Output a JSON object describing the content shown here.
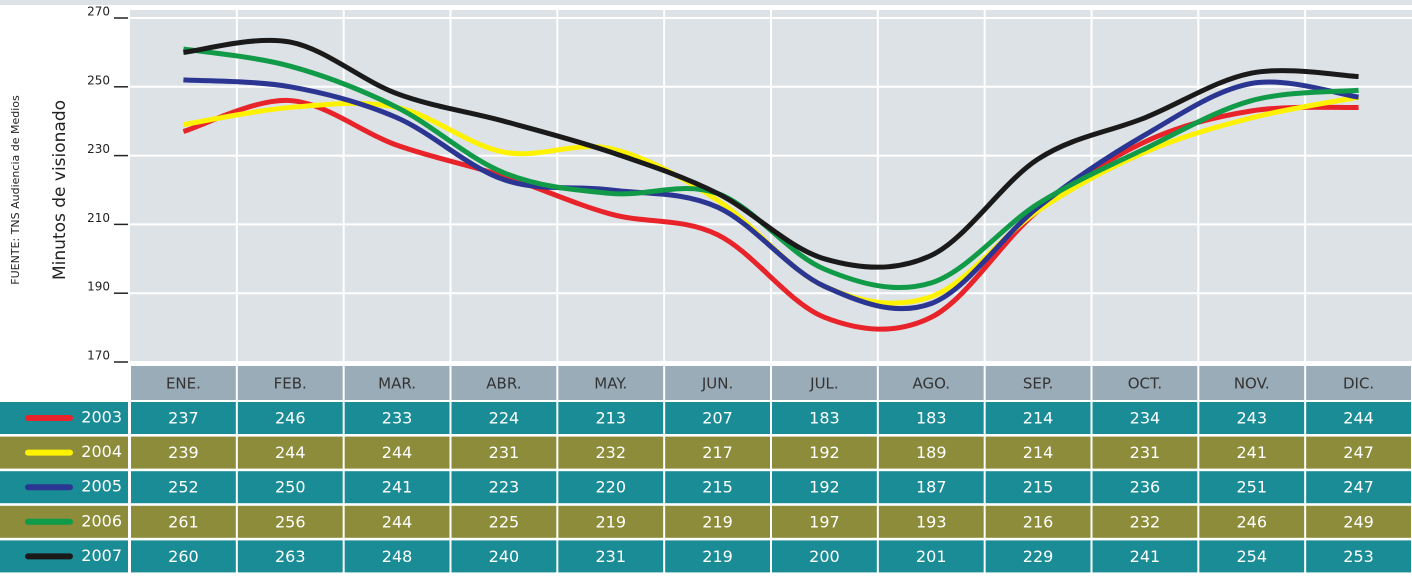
{
  "chart_data": {
    "type": "line",
    "source": "FUENTE: TNS Audiencia de Medios",
    "y_label": "Minutos de visionado",
    "categories": [
      "ENE.",
      "FEB.",
      "MAR.",
      "ABR.",
      "MAY.",
      "JUN.",
      "JUL.",
      "AGO.",
      "SEP.",
      "OCT.",
      "NOV.",
      "DIC."
    ],
    "ylim": [
      170,
      270
    ],
    "yticks": [
      170,
      190,
      210,
      230,
      250,
      270
    ],
    "grid": true,
    "series": [
      {
        "name": "2003",
        "color": "#e8232a",
        "values": [
          237,
          246,
          233,
          224,
          213,
          207,
          183,
          183,
          214,
          234,
          243,
          244
        ]
      },
      {
        "name": "2004",
        "color": "#fff200",
        "values": [
          239,
          244,
          244,
          231,
          232,
          217,
          192,
          189,
          214,
          231,
          241,
          247
        ]
      },
      {
        "name": "2005",
        "color": "#2b3592",
        "values": [
          252,
          250,
          241,
          223,
          220,
          215,
          192,
          187,
          215,
          236,
          251,
          247
        ]
      },
      {
        "name": "2006",
        "color": "#119a48",
        "values": [
          261,
          256,
          244,
          225,
          219,
          219,
          197,
          193,
          216,
          232,
          246,
          249
        ]
      },
      {
        "name": "2007",
        "color": "#1a1a1a",
        "values": [
          260,
          263,
          248,
          240,
          231,
          219,
          200,
          201,
          229,
          241,
          254,
          253
        ]
      }
    ]
  }
}
